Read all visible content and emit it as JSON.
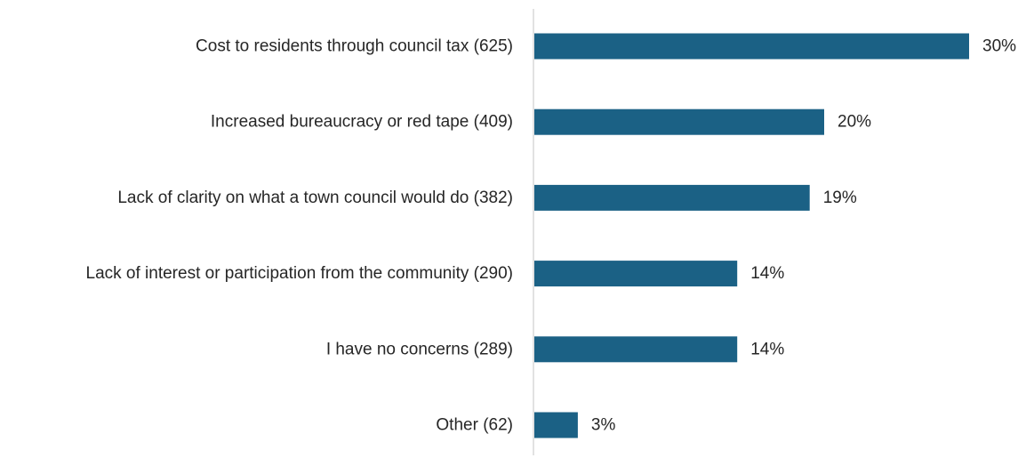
{
  "chart_data": {
    "type": "bar",
    "orientation": "horizontal",
    "categories": [
      "Cost to residents through council tax (625)",
      "Increased bureaucracy or red tape (409)",
      "Lack of clarity on what a town council would do (382)",
      "Lack of interest or participation from the community (290)",
      "I have no concerns (289)",
      "Other (62)"
    ],
    "values": [
      30,
      20,
      19,
      14,
      14,
      3
    ],
    "value_labels": [
      "30%",
      "20%",
      "19%",
      "14%",
      "14%",
      "3%"
    ],
    "title": "",
    "xlabel": "",
    "ylabel": "",
    "xlim": [
      0,
      30
    ],
    "grid": false,
    "legend": "none",
    "bar_color": "#1b6185",
    "axis_color": "#d9d9d9"
  }
}
